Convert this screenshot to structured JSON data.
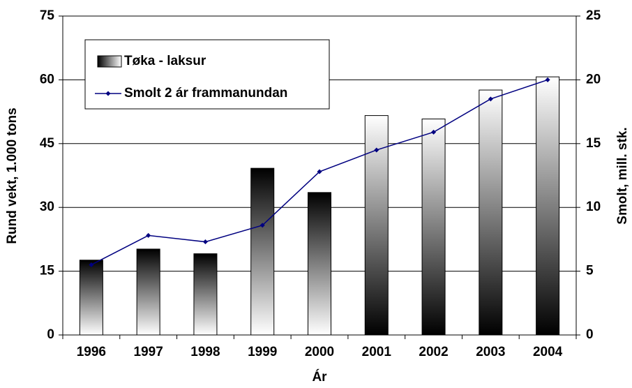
{
  "chart_data": {
    "type": "bar",
    "categories": [
      "1996",
      "1997",
      "1998",
      "1999",
      "2000",
      "2001",
      "2002",
      "2003",
      "2004"
    ],
    "x_label": "Ár",
    "y_label": "Rund vekt, 1.000 tons",
    "y2_label": "Smolt, mill. stk.",
    "ylim": [
      0,
      75
    ],
    "yticks": [
      0,
      15,
      30,
      45,
      60,
      75
    ],
    "y2lim": [
      0,
      25
    ],
    "y2ticks": [
      0,
      5,
      10,
      15,
      20,
      25
    ],
    "grid": true,
    "legend": "upper left",
    "series": [
      {
        "name": "Tøka - laksur",
        "type": "bar",
        "color": "#000000",
        "gradient": [
          "top",
          "top",
          "top",
          "top",
          "top",
          "bottom",
          "bottom",
          "bottom",
          "bottom"
        ],
        "values": [
          17.6,
          20.2,
          19.1,
          39.2,
          33.5,
          51.6,
          50.8,
          57.6,
          60.7
        ]
      },
      {
        "name": "Smolt 2 ár frammanundan",
        "type": "line",
        "axis": "y2",
        "color": "#000080",
        "values": [
          5.5,
          7.8,
          7.3,
          8.6,
          12.8,
          14.5,
          15.9,
          18.5,
          20.0
        ]
      }
    ]
  }
}
